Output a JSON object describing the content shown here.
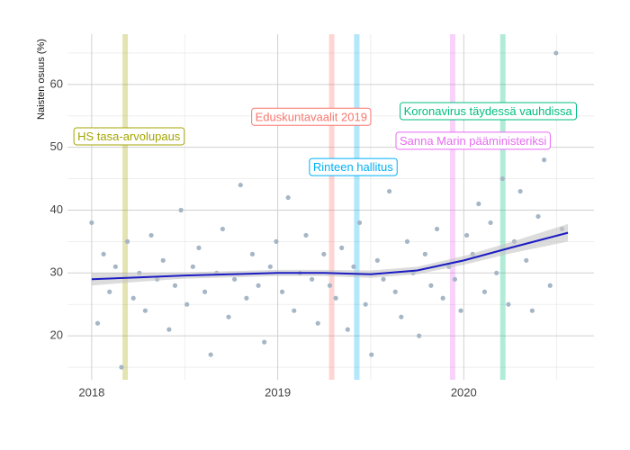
{
  "chart_data": {
    "type": "scatter",
    "y_axis_label": "Naisten osuus (%)",
    "xlim": [
      2017.87,
      2020.7
    ],
    "ylim": [
      13,
      68
    ],
    "xticks": [
      2018,
      2019,
      2020
    ],
    "yticks": [
      20,
      30,
      40,
      50,
      60
    ],
    "xticks_minor": [
      2018.5,
      2019.5,
      2020.5
    ],
    "yticks_minor": [
      15,
      25,
      35,
      45,
      55,
      65
    ],
    "grid": true,
    "point_color": "#a5b6c6",
    "x": [
      2018,
      2018.032,
      2018.064,
      2018.096,
      2018.128,
      2018.16,
      2018.192,
      2018.224,
      2018.256,
      2018.288,
      2018.32,
      2018.352,
      2018.384,
      2018.416,
      2018.448,
      2018.48,
      2018.512,
      2018.544,
      2018.576,
      2018.608,
      2018.64,
      2018.672,
      2018.704,
      2018.736,
      2018.768,
      2018.8,
      2018.832,
      2018.864,
      2018.896,
      2018.928,
      2018.96,
      2018.992,
      2019.024,
      2019.056,
      2019.088,
      2019.12,
      2019.152,
      2019.184,
      2019.216,
      2019.248,
      2019.28,
      2019.312,
      2019.344,
      2019.376,
      2019.408,
      2019.44,
      2019.472,
      2019.504,
      2019.536,
      2019.568,
      2019.6,
      2019.632,
      2019.664,
      2019.696,
      2019.728,
      2019.76,
      2019.792,
      2019.824,
      2019.856,
      2019.888,
      2019.92,
      2019.952,
      2019.984,
      2020.016,
      2020.048,
      2020.08,
      2020.112,
      2020.144,
      2020.176,
      2020.208,
      2020.24,
      2020.272,
      2020.304,
      2020.336,
      2020.368,
      2020.4,
      2020.432,
      2020.464,
      2020.496,
      2020.528
    ],
    "values": [
      38,
      22,
      33,
      27,
      31,
      15,
      35,
      26,
      30,
      24,
      36,
      29,
      32,
      21,
      28,
      40,
      25,
      31,
      34,
      27,
      17,
      30,
      37,
      23,
      29,
      44,
      26,
      33,
      28,
      19,
      31,
      35,
      27,
      42,
      24,
      30,
      36,
      29,
      22,
      33,
      28,
      26,
      34,
      21,
      31,
      38,
      25,
      17,
      32,
      29,
      43,
      27,
      23,
      35,
      30,
      20,
      33,
      28,
      37,
      26,
      31,
      29,
      24,
      36,
      33,
      41,
      27,
      38,
      30,
      45,
      25,
      35,
      43,
      32,
      24,
      39,
      48,
      28,
      65,
      37
    ],
    "smooth": {
      "color": "#1c1cc4",
      "band_color": "#c4c4c4",
      "x": [
        2018,
        2018.25,
        2018.5,
        2018.75,
        2019,
        2019.25,
        2019.5,
        2019.75,
        2020,
        2020.25,
        2020.56
      ],
      "values": [
        29,
        29.3,
        29.6,
        29.8,
        30,
        30,
        29.8,
        30.4,
        32,
        34,
        36.4
      ],
      "lower": [
        28,
        28.6,
        29.1,
        29.3,
        29.5,
        29.5,
        29.2,
        29.8,
        31.3,
        33.1,
        35
      ],
      "upper": [
        30,
        30,
        30.1,
        30.3,
        30.5,
        30.5,
        30.4,
        31,
        32.7,
        34.9,
        37.8
      ]
    },
    "events": [
      {
        "name": "HS tasa-arvolupaus",
        "x": 2018.18,
        "label_x": 2018.2,
        "label_y": 51.6,
        "color": "#a3a500"
      },
      {
        "name": "Eduskuntavaalit 2019",
        "x": 2019.29,
        "label_x": 2019.18,
        "label_y": 54.7,
        "color": "#f8766d"
      },
      {
        "name": "Rinteen hallitus",
        "x": 2019.425,
        "label_x": 2019.405,
        "label_y": 46.7,
        "color": "#00b0f6"
      },
      {
        "name": "Sanna Marin pääministeriksi",
        "x": 2019.94,
        "label_x": 2020.05,
        "label_y": 50.9,
        "color": "#e76bf3"
      },
      {
        "name": "Koronavirus täydessä vauhdissa",
        "x": 2020.21,
        "label_x": 2020.13,
        "label_y": 55.6,
        "color": "#00bf7d"
      }
    ]
  }
}
